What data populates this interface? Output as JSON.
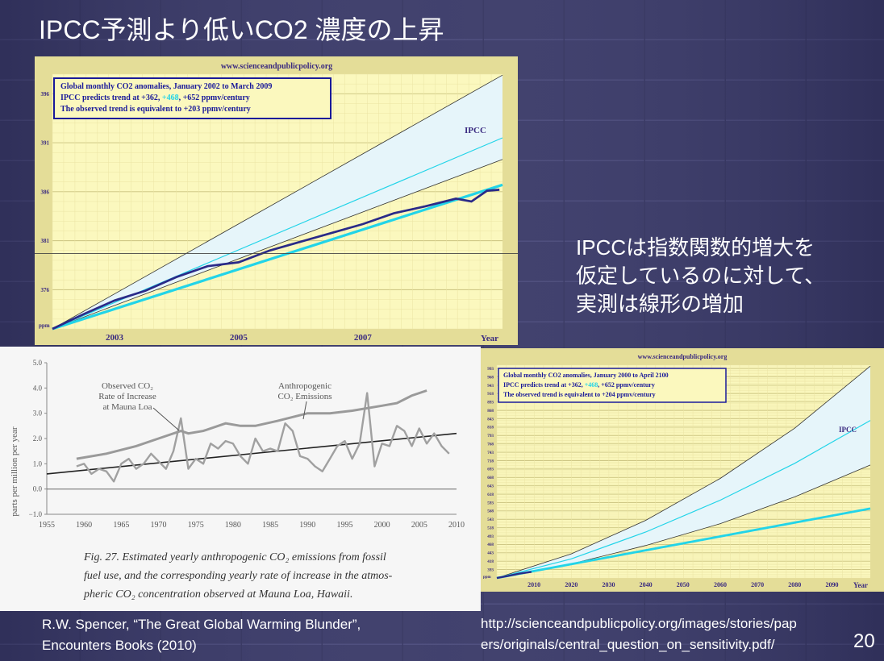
{
  "slide": {
    "title": "IPCC予測より低いCO2 濃度の上昇",
    "side_lines": [
      "IPCCは指数関数的増大を",
      "仮定しているのに対して、",
      "実測は線形の増加"
    ],
    "citation_left": [
      "R.W. Spencer, “The Great Global Warming Blunder”,",
      "Encounters Books (2010)"
    ],
    "citation_right": [
      "http://scienceandpublicpolicy.org/images/stories/pap",
      "ers/originals/central_question_on_sensitivity.pdf/"
    ],
    "page_number": "20"
  },
  "colors": {
    "background": "#3a3a66",
    "plot_bg": "#fbf8be",
    "frame": "#e4dd98",
    "ipcc_band": "#e6f5fa",
    "ipcc_line": "#22d4e8",
    "observed": "#2a2a88",
    "legend_border": "#1a1a9a"
  },
  "chart_data": [
    {
      "type": "line",
      "header": "www.scienceandpublicpolicy.org",
      "legend": [
        "Global monthly CO2 anomalies, January 2002 to March 2009",
        "IPCC predicts trend at +362, ",
        "+468",
        ", +652 ppmv/century",
        "The observed trend is equivalent to +203 ppmv/century"
      ],
      "ipcc_label": "IPCC",
      "y_unit": "ppm",
      "xlabel": "Year",
      "ylim": [
        372,
        398
      ],
      "xlim": [
        2002,
        2009.25
      ],
      "y_ticks": [
        376,
        381,
        386,
        391,
        396
      ],
      "x_ticks": [
        2003,
        2005,
        2007
      ],
      "series": [
        {
          "name": "IPCC",
          "role": "upper",
          "x": [
            2002,
            2009.25
          ],
          "y": [
            372,
            397.9
          ]
        },
        {
          "name": "IPCC",
          "role": "central",
          "x": [
            2002,
            2009.25
          ],
          "y": [
            372,
            391.5
          ]
        },
        {
          "name": "IPCC",
          "role": "lower",
          "x": [
            2002,
            2009.25
          ],
          "y": [
            372,
            389.3
          ]
        },
        {
          "name": "observed trend",
          "x": [
            2002,
            2009.25
          ],
          "y": [
            372,
            386.7
          ]
        },
        {
          "name": "observed",
          "x": [
            2002.0,
            2002.5,
            2003.0,
            2003.5,
            2004.0,
            2004.5,
            2005.0,
            2005.5,
            2006.0,
            2006.5,
            2007.0,
            2007.5,
            2008.0,
            2008.5,
            2008.75,
            2009.0,
            2009.2
          ],
          "y": [
            372.0,
            373.5,
            374.9,
            375.9,
            377.3,
            378.4,
            378.8,
            380.0,
            380.9,
            381.8,
            382.7,
            383.8,
            384.5,
            385.3,
            385.0,
            386.1,
            386.2
          ]
        }
      ]
    },
    {
      "type": "line",
      "labels": [
        "Observed CO₂",
        "Rate of Increase",
        "at Mauna Loa",
        "Anthropogenic",
        "CO₂ Emissions"
      ],
      "ylabel": "parts per million per year",
      "caption": [
        "Fig. 27.  Estimated yearly anthropogenic CO₂ emissions from fossil",
        "fuel use, and the corresponding yearly rate of increase in the atmos-",
        "pheric CO₂ concentration observed at Mauna Loa, Hawaii."
      ],
      "xlim": [
        1955,
        2010
      ],
      "ylim": [
        -1.0,
        5.0
      ],
      "y_ticks": [
        "5.0",
        "4.0",
        "3.0",
        "2.0",
        "1.0",
        "0.0",
        "−1.0"
      ],
      "x_ticks": [
        1955,
        1960,
        1965,
        1970,
        1975,
        1980,
        1985,
        1990,
        1995,
        2000,
        2005,
        2010
      ],
      "series": [
        {
          "name": "Anthropogenic CO₂ Emissions",
          "x": [
            1959,
            1963,
            1967,
            1970,
            1973,
            1974,
            1976,
            1979,
            1981,
            1983,
            1986,
            1990,
            1993,
            1996,
            2000,
            2002,
            2004,
            2006
          ],
          "y": [
            1.2,
            1.4,
            1.7,
            2.0,
            2.3,
            2.2,
            2.3,
            2.6,
            2.5,
            2.5,
            2.7,
            3.0,
            3.0,
            3.1,
            3.3,
            3.4,
            3.7,
            3.9
          ]
        },
        {
          "name": "Observed CO₂ Rate of Increase at Mauna Loa",
          "x": [
            1959,
            1960,
            1961,
            1962,
            1963,
            1964,
            1965,
            1966,
            1967,
            1968,
            1969,
            1970,
            1971,
            1972,
            1973,
            1974,
            1975,
            1976,
            1977,
            1978,
            1979,
            1980,
            1981,
            1982,
            1983,
            1984,
            1985,
            1986,
            1987,
            1988,
            1989,
            1990,
            1991,
            1992,
            1993,
            1994,
            1995,
            1996,
            1997,
            1998,
            1999,
            2000,
            2001,
            2002,
            2003,
            2004,
            2005,
            2006,
            2007,
            2008,
            2009
          ],
          "y": [
            0.9,
            1.0,
            0.6,
            0.8,
            0.7,
            0.3,
            1.0,
            1.2,
            0.8,
            1.0,
            1.4,
            1.1,
            0.8,
            1.5,
            2.8,
            0.8,
            1.2,
            1.0,
            1.8,
            1.6,
            1.9,
            1.8,
            1.3,
            1.0,
            2.0,
            1.5,
            1.6,
            1.5,
            2.6,
            2.3,
            1.3,
            1.2,
            0.9,
            0.7,
            1.2,
            1.7,
            1.9,
            1.2,
            1.8,
            3.8,
            0.9,
            1.8,
            1.7,
            2.5,
            2.3,
            1.7,
            2.4,
            1.8,
            2.2,
            1.7,
            1.4
          ]
        },
        {
          "name": "trend",
          "x": [
            1955,
            2010
          ],
          "y": [
            0.6,
            2.2
          ]
        },
        {
          "name": "zero",
          "x": [
            1955,
            2010
          ],
          "y": [
            0.0,
            0.0
          ]
        }
      ]
    },
    {
      "type": "line",
      "header": "www.scienceandpublicpolicy.org",
      "legend": [
        "Global monthly CO2 anomalies, January 2000 to April 2100",
        "IPCC predicts trend at +362, ",
        "+468",
        ", +652 ppmv/century",
        "The observed trend is equivalent to +204 ppmv/century"
      ],
      "ipcc_label": "IPCC",
      "y_unit": "ppm",
      "xlabel": "Year",
      "ylim": [
        368,
        1003
      ],
      "xlim": [
        2000,
        2100.3
      ],
      "y_ticks": [
        393,
        418,
        443,
        468,
        493,
        518,
        543,
        568,
        593,
        618,
        643,
        668,
        693,
        718,
        743,
        768,
        793,
        818,
        843,
        868,
        893,
        918,
        943,
        968,
        993
      ],
      "x_ticks": [
        2010,
        2020,
        2030,
        2040,
        2050,
        2060,
        2070,
        2080,
        2090
      ],
      "series": [
        {
          "name": "IPCC",
          "role": "upper",
          "x": [
            2000,
            2020,
            2040,
            2060,
            2080,
            2100.3
          ],
          "y": [
            368,
            440,
            540,
            665,
            815,
            1000
          ]
        },
        {
          "name": "IPCC",
          "role": "central",
          "x": [
            2000,
            2020,
            2040,
            2060,
            2080,
            2100.3
          ],
          "y": [
            368,
            425,
            505,
            600,
            710,
            838
          ]
        },
        {
          "name": "IPCC",
          "role": "lower",
          "x": [
            2000,
            2020,
            2040,
            2060,
            2080,
            2100.3
          ],
          "y": [
            368,
            410,
            465,
            530,
            610,
            705
          ]
        },
        {
          "name": "observed trend",
          "x": [
            2000,
            2100.3
          ],
          "y": [
            368,
            575
          ]
        },
        {
          "name": "observed",
          "x": [
            2000,
            2003,
            2006,
            2009.3
          ],
          "y": [
            368,
            374,
            381,
            386
          ]
        }
      ]
    }
  ]
}
